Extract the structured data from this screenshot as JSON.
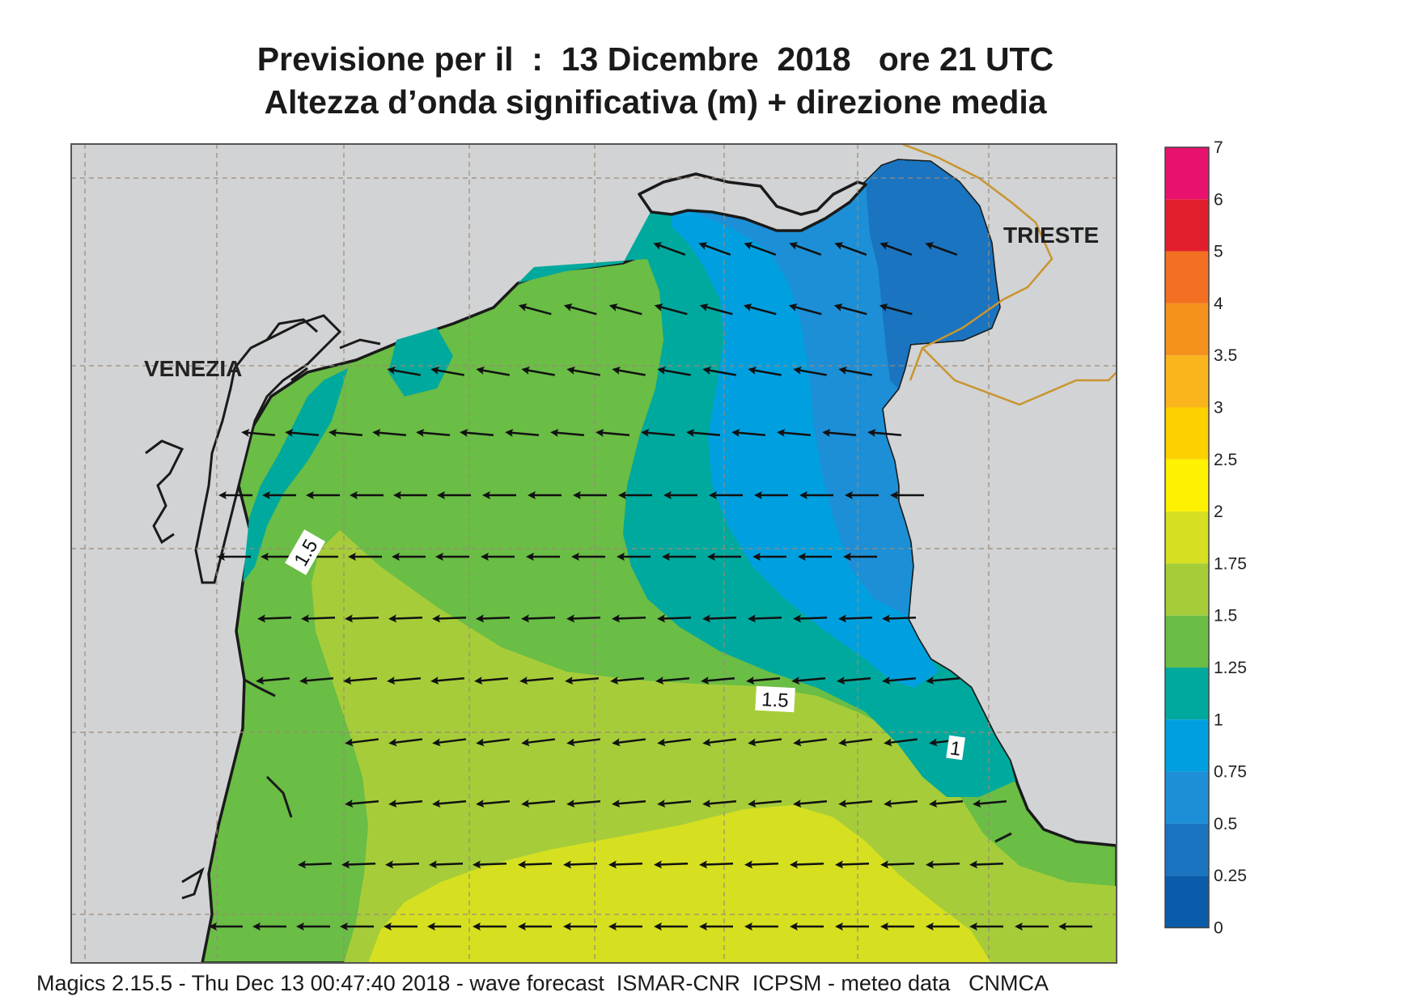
{
  "title": {
    "line1": "Previsione per il  :  13 Dicembre  2018   ore 21 UTC",
    "line2": "Altezza d’onda significativa (m) + direzione media"
  },
  "cities": {
    "venezia": "VENEZIA",
    "trieste": "TRIESTE"
  },
  "contour_labels": {
    "west": "1.5",
    "center": "1.5",
    "east": "1"
  },
  "legend": {
    "levels": [
      "7",
      "6",
      "5",
      "4",
      "3.5",
      "3",
      "2.5",
      "2",
      "1.75",
      "1.5",
      "1.25",
      "1",
      "0.75",
      "0.5",
      "0.25",
      "0"
    ],
    "colors": [
      "#e8126e",
      "#e31e2c",
      "#f36f22",
      "#f5921e",
      "#f9b51b",
      "#fcd100",
      "#fff200",
      "#d6e021",
      "#a6cd39",
      "#6abd45",
      "#00a99d",
      "#00a0e0",
      "#1d8fd6",
      "#1a74c0",
      "#0a5caa"
    ]
  },
  "palette": {
    "land": "#d2d3d5",
    "coast": "#1a1a1a",
    "border": "#c9952f"
  },
  "footer": "Magics 2.15.5 - Thu Dec 13 00:47:40 2018 - wave forecast  ISMAR-CNR  ICPSM - meteo data   CNMCA"
}
